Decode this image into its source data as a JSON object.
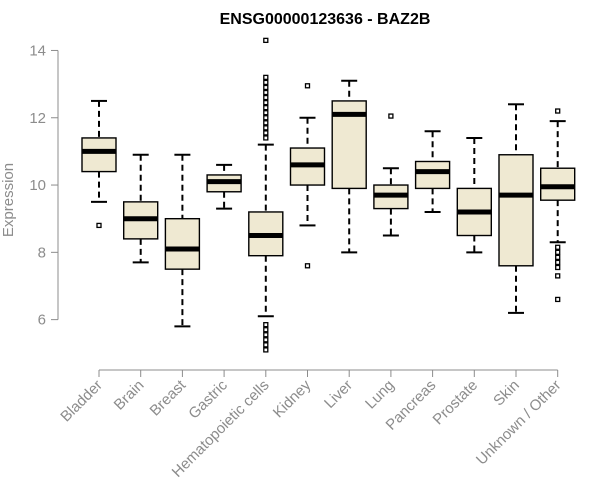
{
  "chart_data": {
    "type": "boxplot",
    "title": "ENSG00000123636 - BAZ2B",
    "xlabel": "",
    "ylabel": "Expression",
    "ylim": [
      4.8,
      14.4
    ],
    "yticks": [
      6,
      8,
      10,
      12,
      14
    ],
    "legend": "none",
    "grid": false,
    "categories": [
      "Bladder",
      "Brain",
      "Breast",
      "Gastric",
      "Hematopoietic cells",
      "Kidney",
      "Liver",
      "Lung",
      "Pancreas",
      "Prostate",
      "Skin",
      "Unknown / Other"
    ],
    "series": [
      {
        "name": "Bladder",
        "min": 9.5,
        "q1": 10.4,
        "median": 11.0,
        "q3": 11.4,
        "max": 12.5,
        "outliers": [
          8.8
        ]
      },
      {
        "name": "Brain",
        "min": 7.7,
        "q1": 8.4,
        "median": 9.0,
        "q3": 9.5,
        "max": 10.9,
        "outliers": []
      },
      {
        "name": "Breast",
        "min": 5.8,
        "q1": 7.5,
        "median": 8.1,
        "q3": 9.0,
        "max": 10.9,
        "outliers": []
      },
      {
        "name": "Gastric",
        "min": 9.3,
        "q1": 9.8,
        "median": 10.1,
        "q3": 10.3,
        "max": 10.6,
        "outliers": []
      },
      {
        "name": "Hematopoietic cells",
        "min": 6.1,
        "q1": 7.9,
        "median": 8.5,
        "q3": 9.2,
        "max": 11.2,
        "outliers": [
          5.1,
          5.25,
          5.4,
          5.55,
          5.7,
          5.85,
          11.4,
          11.55,
          11.7,
          11.85,
          12.0,
          12.15,
          12.3,
          12.45,
          12.6,
          12.75,
          12.9,
          13.05,
          13.2,
          14.3
        ]
      },
      {
        "name": "Kidney",
        "min": 8.8,
        "q1": 10.0,
        "median": 10.6,
        "q3": 11.1,
        "max": 12.0,
        "outliers": [
          7.6,
          12.95
        ]
      },
      {
        "name": "Liver",
        "min": 8.0,
        "q1": 9.9,
        "median": 12.1,
        "q3": 12.5,
        "max": 13.1,
        "outliers": []
      },
      {
        "name": "Lung",
        "min": 8.5,
        "q1": 9.3,
        "median": 9.7,
        "q3": 10.0,
        "max": 10.5,
        "outliers": [
          12.05
        ]
      },
      {
        "name": "Pancreas",
        "min": 9.2,
        "q1": 9.9,
        "median": 10.4,
        "q3": 10.7,
        "max": 11.6,
        "outliers": []
      },
      {
        "name": "Prostate",
        "min": 8.0,
        "q1": 8.5,
        "median": 9.2,
        "q3": 9.9,
        "max": 11.4,
        "outliers": []
      },
      {
        "name": "Skin",
        "min": 6.2,
        "q1": 7.6,
        "median": 9.7,
        "q3": 10.9,
        "max": 12.4,
        "outliers": []
      },
      {
        "name": "Unknown / Other",
        "min": 8.3,
        "q1": 9.55,
        "median": 9.95,
        "q3": 10.5,
        "max": 11.9,
        "outliers": [
          6.6,
          7.3,
          7.55,
          7.7,
          7.85,
          8.0,
          8.15,
          12.2
        ]
      }
    ]
  }
}
